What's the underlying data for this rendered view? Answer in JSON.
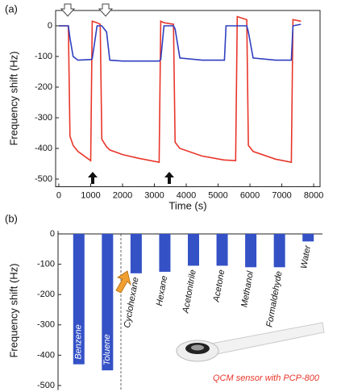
{
  "chart_data": [
    {
      "type": "line",
      "label": "(a)",
      "x_label": "Time (s)",
      "y_label": "Frequency shift (Hz)",
      "x": [
        0,
        300,
        350,
        450,
        600,
        1000,
        1050,
        1200,
        1300,
        1350,
        1500,
        1600,
        2000,
        2500,
        3150,
        3200,
        3300,
        3600,
        3650,
        3800,
        4500,
        5200,
        5250,
        5550,
        5600,
        5900,
        5950,
        6100,
        6800,
        7300,
        7350,
        7600
      ],
      "series": [
        {
          "color": "#e8362a",
          "values": [
            0,
            0,
            -360,
            -390,
            -410,
            -440,
            15,
            10,
            5,
            -370,
            -395,
            -405,
            -420,
            -432,
            -445,
            15,
            10,
            5,
            -380,
            -400,
            -425,
            -438,
            -438,
            -440,
            30,
            20,
            -390,
            -410,
            -435,
            -445,
            20,
            15
          ]
        },
        {
          "color": "#2f3fc0",
          "values": [
            0,
            0,
            -40,
            -100,
            -112,
            -110,
            -108,
            0,
            0,
            0,
            -20,
            -112,
            -115,
            -115,
            -115,
            -110,
            0,
            0,
            -10,
            -105,
            -112,
            -112,
            0,
            0,
            0,
            0,
            -20,
            -105,
            -112,
            -112,
            0,
            5
          ]
        }
      ],
      "xlim": [
        -100,
        8200
      ],
      "ylim": [
        -525,
        50
      ],
      "xticks": [
        0,
        1000,
        2000,
        3000,
        4000,
        5000,
        6000,
        7000,
        8000
      ],
      "yticks": [
        0,
        -100,
        -200,
        -300,
        -400,
        -500
      ],
      "grid": false
    },
    {
      "type": "bar",
      "label": "(b)",
      "y_label": "Frequency shift (Hz)",
      "categories": [
        "Benzene",
        "Toluene",
        "Cyclohexane",
        "Hexane",
        "Acetonitrile",
        "Acetone",
        "Methanol",
        "Formaldehyde",
        "Water"
      ],
      "values": [
        -430,
        -450,
        -130,
        -125,
        -105,
        -105,
        -110,
        -110,
        -25
      ],
      "color": "#3451c6",
      "ylim": [
        -515,
        10
      ],
      "yticks": [
        0,
        -100,
        -200,
        -300,
        -400,
        -500
      ],
      "grid": false,
      "annotation": "QCM sensor with PCP-800"
    }
  ]
}
